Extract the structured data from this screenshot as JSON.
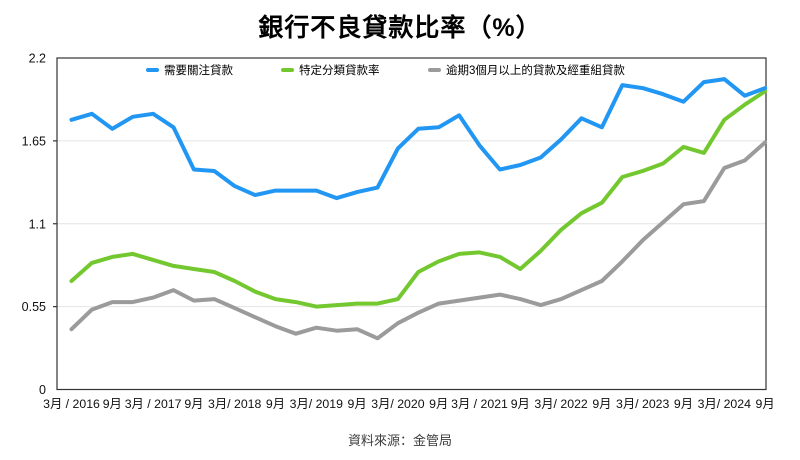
{
  "page": {
    "background": "#ffffff"
  },
  "chart_data": {
    "type": "line",
    "title": "銀行不良貸款比率（%）",
    "source_note": "資料來源：金管局",
    "ylim": [
      0,
      2.2
    ],
    "y_ticks": [
      0,
      0.55,
      1.1,
      1.65,
      2.2
    ],
    "y_tick_labels": [
      "0",
      "0.55",
      "1.1",
      "1.65",
      "2.2"
    ],
    "x_tick_labels": [
      "3月 / 2016",
      "9月",
      "3月 / 2017",
      "9月",
      "3月/ 2018",
      "9月",
      "3月/ 2019",
      "9月",
      "3月/ 2020",
      "9月",
      "3月 / 2021",
      "9月",
      "3月/ 2022",
      "9月",
      "3月/ 2023",
      "9月",
      "3月/ 2024",
      "9月"
    ],
    "x_quarters": [
      "2016 3月",
      "2016 6月",
      "2016 9月",
      "2016 12月",
      "2017 3月",
      "2017 6月",
      "2017 9月",
      "2017 12月",
      "2018 3月",
      "2018 6月",
      "2018 9月",
      "2018 12月",
      "2019 3月",
      "2019 6月",
      "2019 9月",
      "2019 12月",
      "2020 3月",
      "2020 6月",
      "2020 9月",
      "2020 12月",
      "2021 3月",
      "2021 6月",
      "2021 9月",
      "2021 12月",
      "2022 3月",
      "2022 6月",
      "2022 9月",
      "2022 12月",
      "2023 3月",
      "2023 6月",
      "2023 9月",
      "2023 12月",
      "2024 3月",
      "2024 6月",
      "2024 9月"
    ],
    "grid": "horizontal",
    "legend_position": "top",
    "axis_color": "#333333",
    "grid_color": "#e4e4e4",
    "text_color": "#111111",
    "series": [
      {
        "name": "需要關注貸款",
        "color": "#2196f3",
        "values": [
          1.79,
          1.83,
          1.73,
          1.81,
          1.83,
          1.74,
          1.46,
          1.45,
          1.35,
          1.29,
          1.32,
          1.32,
          1.32,
          1.27,
          1.31,
          1.34,
          1.6,
          1.73,
          1.74,
          1.82,
          1.62,
          1.46,
          1.49,
          1.54,
          1.66,
          1.8,
          1.74,
          2.02,
          2.0,
          1.96,
          1.91,
          2.04,
          2.06,
          1.95,
          2.0
        ]
      },
      {
        "name": "特定分類貸款率",
        "color": "#74c82f",
        "values": [
          0.72,
          0.84,
          0.88,
          0.9,
          0.86,
          0.82,
          0.8,
          0.78,
          0.72,
          0.65,
          0.6,
          0.58,
          0.55,
          0.56,
          0.57,
          0.57,
          0.6,
          0.78,
          0.85,
          0.9,
          0.91,
          0.88,
          0.8,
          0.92,
          1.06,
          1.17,
          1.24,
          1.41,
          1.45,
          1.5,
          1.61,
          1.57,
          1.79,
          1.89,
          1.98
        ]
      },
      {
        "name": "逾期3個月以上的貸款及經重組貸款",
        "color": "#9b9b9b",
        "values": [
          0.4,
          0.53,
          0.58,
          0.58,
          0.61,
          0.66,
          0.59,
          0.6,
          0.54,
          0.48,
          0.42,
          0.37,
          0.41,
          0.39,
          0.4,
          0.34,
          0.44,
          0.51,
          0.57,
          0.59,
          0.61,
          0.63,
          0.6,
          0.56,
          0.6,
          0.66,
          0.72,
          0.85,
          0.99,
          1.11,
          1.23,
          1.25,
          1.47,
          1.52,
          1.64
        ]
      }
    ]
  }
}
